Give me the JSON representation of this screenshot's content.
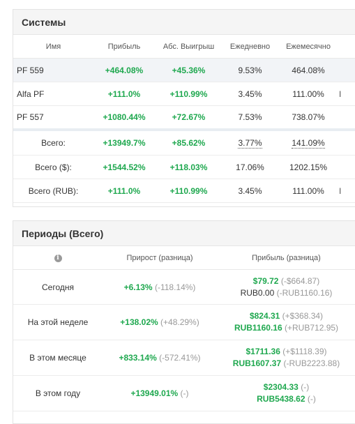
{
  "systems": {
    "title": "Системы",
    "columns": [
      "Имя",
      "Прибыль",
      "Абс. Выигрыш",
      "Ежедневно",
      "Ежемесячно"
    ],
    "rows": [
      {
        "name": "PF 559",
        "profit": "+464.08%",
        "abs": "+45.36%",
        "daily": "9.53%",
        "monthly": "464.08%",
        "extra": ""
      },
      {
        "name": "Alfa PF",
        "profit": "+111.0%",
        "abs": "+110.99%",
        "daily": "3.45%",
        "monthly": "111.00%",
        "extra": "I"
      },
      {
        "name": "PF 557",
        "profit": "+1080.44%",
        "abs": "+72.67%",
        "daily": "7.53%",
        "monthly": "738.07%",
        "extra": ""
      }
    ],
    "totals": [
      {
        "name": "Всего:",
        "profit": "+13949.7%",
        "abs": "+85.62%",
        "daily": "3.77%",
        "monthly": "141.09%",
        "extra": ""
      },
      {
        "name": "Всего ($):",
        "profit": "+1544.52%",
        "abs": "+118.03%",
        "daily": "17.06%",
        "monthly": "1202.15%",
        "extra": ""
      },
      {
        "name": "Всего (RUB):",
        "profit": "+111.0%",
        "abs": "+110.99%",
        "daily": "3.45%",
        "monthly": "111.00%",
        "extra": "I"
      }
    ]
  },
  "periods": {
    "title": "Периоды (Всего)",
    "info_glyph": "i",
    "columns": [
      "Прирост (разница)",
      "Прибыль (разница)"
    ],
    "rows": [
      {
        "label": "Сегодня",
        "growth": "+6.13%",
        "growth_diff": "(-118.14%)",
        "profit1": "$79.72",
        "profit1_diff": "(-$664.87)",
        "profit2": "RUB0.00",
        "profit2_diff": "(-RUB1160.16)"
      },
      {
        "label": "На этой неделе",
        "growth": "+138.02%",
        "growth_diff": "(+48.29%)",
        "profit1": "$824.31",
        "profit1_diff": "(+$368.34)",
        "profit2": "RUB1160.16",
        "profit2_diff": "(+RUB712.95)"
      },
      {
        "label": "В этом месяце",
        "growth": "+833.14%",
        "growth_diff": "(-572.41%)",
        "profit1": "$1711.36",
        "profit1_diff": "(+$1118.39)",
        "profit2": "RUB1607.37",
        "profit2_diff": "(-RUB2223.88)"
      },
      {
        "label": "В этом году",
        "growth": "+13949.01%",
        "growth_diff": "(-)",
        "profit1": "$2304.33",
        "profit1_diff": "(-)",
        "profit2": "RUB5438.62",
        "profit2_diff": "(-)"
      }
    ]
  }
}
